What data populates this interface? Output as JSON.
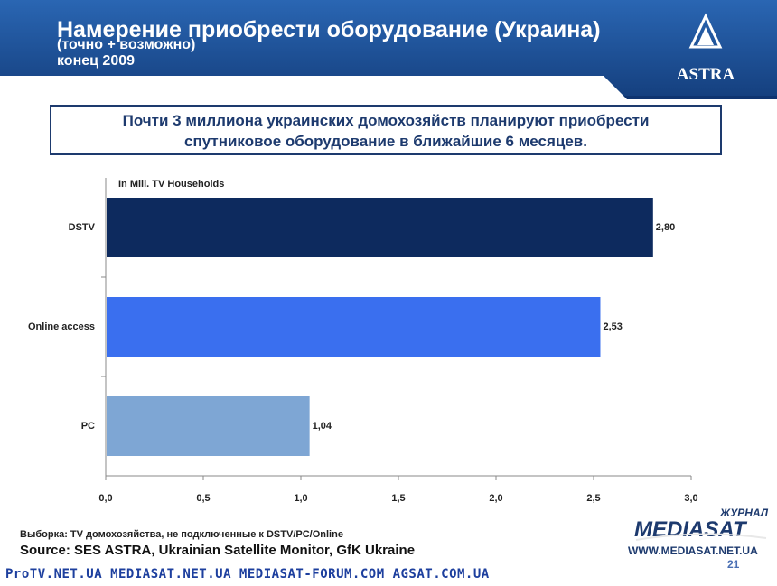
{
  "header": {
    "title": "Намерение приобрести оборудование (Украина)",
    "subtitle": "(точно + возможно)",
    "date": "конец 2009",
    "logo_text": "ASTRA"
  },
  "callout": {
    "line1": "Почти 3 миллиона украинских домохозяйств планируют приобрести",
    "line2": "спутниковое оборудование в ближайшие 6 месяцев."
  },
  "chart_data": {
    "type": "bar",
    "orientation": "horizontal",
    "unit_label": "In Mill. TV Households",
    "categories": [
      "DSTV",
      "Online access",
      "PC"
    ],
    "values": [
      2.8,
      2.53,
      1.04
    ],
    "value_labels": [
      "2,80",
      "2,53",
      "1,04"
    ],
    "colors": [
      "#0d2a5e",
      "#3a6fef",
      "#7ea6d4"
    ],
    "xlim": [
      0,
      3.0
    ],
    "xticks": [
      "0,0",
      "0,5",
      "1,0",
      "1,5",
      "2,0",
      "2,5",
      "3,0"
    ],
    "grid": false
  },
  "footer": {
    "footnote": "Выборка: TV домохозяйства, не подключенные к  DSTV/PC/Online",
    "source": "Source: SES ASTRA, Ukrainian Satellite Monitor, GfK Ukraine",
    "page_number": "21",
    "links": "ProTV.NET.UA  MEDIASAT.NET.UA  MEDIASAT-FORUM.COM  AGSAT.COM.UA",
    "mediasat_small": "ЖУРНАЛ",
    "mediasat_brand": "MEDIASAT",
    "mediasat_url": "WWW.MEDIASAT.NET.UA"
  },
  "colors": {
    "header_blue": "#1e4f95",
    "header_dark": "#0f3470",
    "accent": "#1d3a6e"
  }
}
